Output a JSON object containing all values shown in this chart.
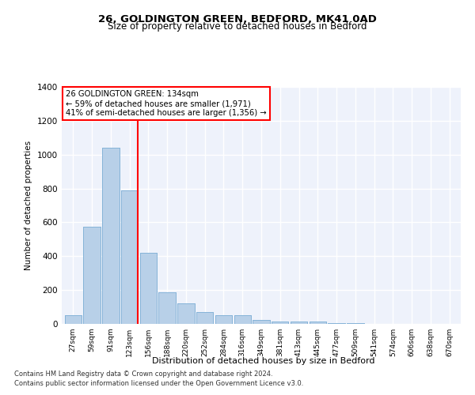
{
  "title1": "26, GOLDINGTON GREEN, BEDFORD, MK41 0AD",
  "title2": "Size of property relative to detached houses in Bedford",
  "xlabel": "Distribution of detached houses by size in Bedford",
  "ylabel": "Number of detached properties",
  "categories": [
    "27sqm",
    "59sqm",
    "91sqm",
    "123sqm",
    "156sqm",
    "188sqm",
    "220sqm",
    "252sqm",
    "284sqm",
    "316sqm",
    "349sqm",
    "381sqm",
    "413sqm",
    "445sqm",
    "477sqm",
    "509sqm",
    "541sqm",
    "574sqm",
    "606sqm",
    "638sqm",
    "670sqm"
  ],
  "values": [
    50,
    575,
    1040,
    790,
    420,
    185,
    120,
    70,
    50,
    50,
    22,
    15,
    15,
    12,
    5,
    5,
    0,
    0,
    0,
    0,
    0
  ],
  "bar_color": "#b8d0e8",
  "bar_edge_color": "#7aadd4",
  "background_color": "#eef2fb",
  "grid_color": "#ffffff",
  "ylim": [
    0,
    1400
  ],
  "yticks": [
    0,
    200,
    400,
    600,
    800,
    1000,
    1200,
    1400
  ],
  "red_line_x": 3.45,
  "annotation_text": "26 GOLDINGTON GREEN: 134sqm\n← 59% of detached houses are smaller (1,971)\n41% of semi-detached houses are larger (1,356) →",
  "footer1": "Contains HM Land Registry data © Crown copyright and database right 2024.",
  "footer2": "Contains public sector information licensed under the Open Government Licence v3.0."
}
